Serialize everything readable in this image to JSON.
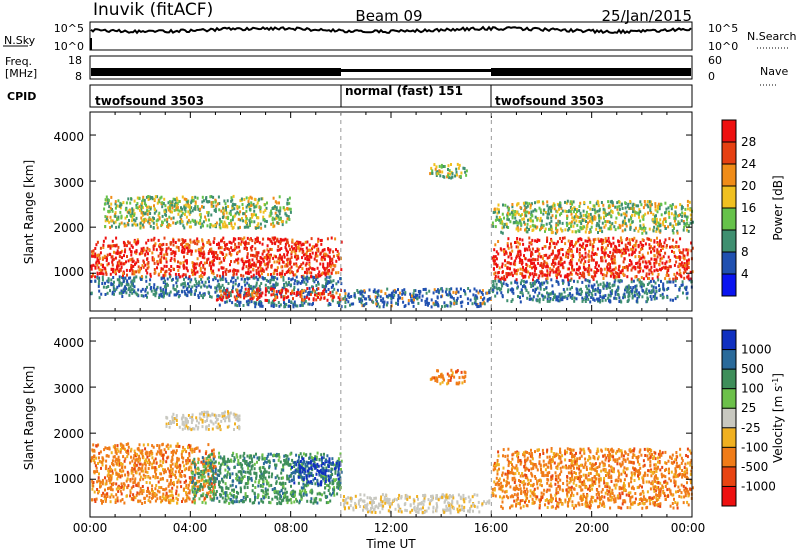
{
  "header": {
    "station": "Inuvik (fitACF)",
    "beam": "Beam 09",
    "date": "25/Jan/2015"
  },
  "status_panels": {
    "nsky": {
      "label": "N.Sky",
      "ticks": [
        "10^5",
        "10^0"
      ]
    },
    "nsearch": {
      "label": "N.Search",
      "ticks": [
        "10^5",
        "10^0"
      ]
    },
    "freq": {
      "label_line1": "Freq.",
      "label_line2": "[MHz]",
      "ticks": [
        "18",
        "8"
      ]
    },
    "nave": {
      "label": "Nave",
      "ticks": [
        "60",
        "0"
      ]
    },
    "cpid": {
      "label": "CPID",
      "segments": [
        {
          "name": "twofsound 3503",
          "start_h": 0,
          "end_h": 10
        },
        {
          "name": "normal (fast) 151",
          "start_h": 10,
          "end_h": 16
        },
        {
          "name": "twofsound 3503",
          "start_h": 16,
          "end_h": 24
        }
      ]
    }
  },
  "chart_data": [
    {
      "type": "heatmap",
      "title": "",
      "xlabel": "",
      "ylabel": "Slant Range [km]",
      "x_range_hours": [
        0,
        24
      ],
      "ylim": [
        180,
        4500
      ],
      "y_ticks": [
        1000,
        2000,
        3000,
        4000
      ],
      "colorbar": {
        "label": "Power [dB]",
        "ticks": [
          "4",
          "8",
          "12",
          "16",
          "20",
          "24",
          "28"
        ],
        "colors": [
          "#0a14f0",
          "#2050b0",
          "#3f8f70",
          "#66c24a",
          "#f0c020",
          "#f08c18",
          "#e64012",
          "#ee1010"
        ]
      },
      "echo_regions": [
        {
          "t": [
            0,
            10
          ],
          "range": [
            500,
            1800
          ],
          "level": "strong"
        },
        {
          "t": [
            5,
            10
          ],
          "range": [
            300,
            700
          ],
          "level": "strong"
        },
        {
          "t": [
            0.5,
            8
          ],
          "range": [
            2000,
            2700
          ],
          "level": "moderate"
        },
        {
          "t": [
            10,
            16
          ],
          "range": [
            300,
            700
          ],
          "level": "weak"
        },
        {
          "t": [
            13.5,
            15
          ],
          "range": [
            3100,
            3400
          ],
          "level": "moderate"
        },
        {
          "t": [
            16,
            24
          ],
          "range": [
            400,
            1800
          ],
          "level": "strong"
        },
        {
          "t": [
            16,
            24
          ],
          "range": [
            1900,
            2600
          ],
          "level": "moderate"
        }
      ]
    },
    {
      "type": "heatmap",
      "title": "",
      "xlabel": "Time UT",
      "ylabel": "Slant Range [km]",
      "x_range_hours": [
        0,
        24
      ],
      "x_ticks": [
        "00:00",
        "04:00",
        "08:00",
        "12:00",
        "16:00",
        "20:00",
        "00:00"
      ],
      "ylim": [
        180,
        4500
      ],
      "y_ticks": [
        1000,
        2000,
        3000,
        4000
      ],
      "colorbar": {
        "label": "Velocity [m s^-1]",
        "ticks": [
          "1000",
          "500",
          "100",
          "25",
          "-25",
          "-100",
          "-500",
          "-1000"
        ],
        "colors": [
          "#1030c0",
          "#2a6a9a",
          "#3e8e5a",
          "#6cc04a",
          "#c8c8c0",
          "#f0b020",
          "#f07c18",
          "#e84412",
          "#ee1010"
        ]
      },
      "echo_regions": [
        {
          "t": [
            0,
            5
          ],
          "range": [
            500,
            1800
          ],
          "level": "negative"
        },
        {
          "t": [
            4,
            10
          ],
          "range": [
            500,
            1600
          ],
          "level": "positive"
        },
        {
          "t": [
            8,
            10
          ],
          "range": [
            900,
            1500
          ],
          "level": "strong-positive"
        },
        {
          "t": [
            3,
            6
          ],
          "range": [
            2100,
            2500
          ],
          "level": "near-zero"
        },
        {
          "t": [
            10,
            16
          ],
          "range": [
            300,
            700
          ],
          "level": "near-zero"
        },
        {
          "t": [
            13.5,
            15
          ],
          "range": [
            3100,
            3400
          ],
          "level": "negative"
        },
        {
          "t": [
            16,
            24
          ],
          "range": [
            400,
            1700
          ],
          "level": "negative"
        }
      ]
    }
  ],
  "axis_titles": {
    "slant_range": "Slant Range [km]",
    "time": "Time UT",
    "power": "Power [dB]",
    "velocity_main": "Velocity [m s",
    "velocity_exp": "-1",
    "velocity_close": "]"
  },
  "time_ticks": [
    "00:00",
    "04:00",
    "08:00",
    "12:00",
    "16:00",
    "20:00",
    "00:00"
  ],
  "range_ticks": [
    "1000",
    "2000",
    "3000",
    "4000"
  ]
}
